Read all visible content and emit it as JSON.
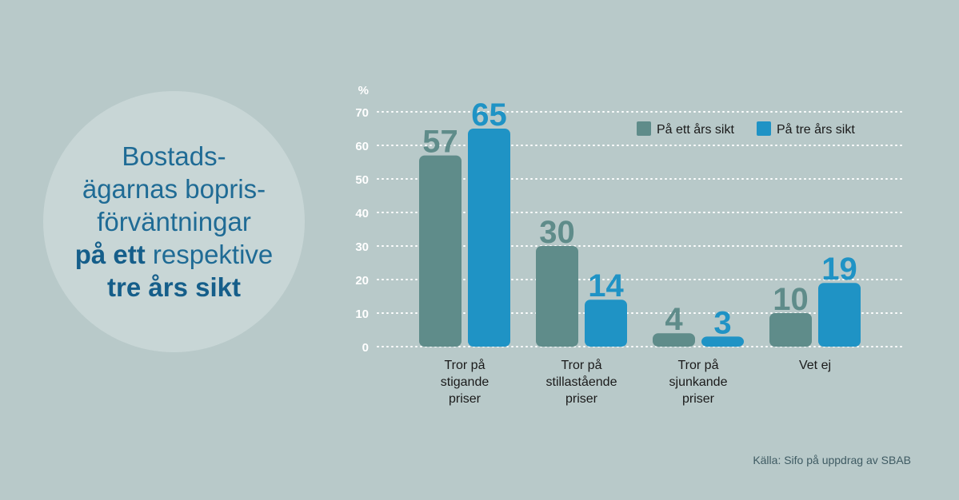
{
  "title": {
    "lines": [
      {
        "text": "Bostads-",
        "bold": false
      },
      {
        "text": "ägarnas bopris-",
        "bold": false
      },
      {
        "text": "förväntningar",
        "bold": false
      },
      {
        "parts": [
          {
            "text": "på ett",
            "bold": true
          },
          {
            "text": " respektive",
            "bold": false
          }
        ]
      },
      {
        "text": "tre års sikt",
        "bold": true
      }
    ]
  },
  "source": "Källa: Sifo på uppdrag av SBAB",
  "colors": {
    "series_1": "#5f8c8a",
    "series_2": "#1f93c5",
    "background": "#b8c9c9"
  },
  "chart_data": {
    "type": "bar",
    "ylabel": "%",
    "ylim": [
      0,
      70
    ],
    "yticks": [
      0,
      10,
      20,
      30,
      40,
      50,
      60,
      70
    ],
    "grid": true,
    "legend_position": "top-right",
    "categories": [
      [
        "Tror på",
        "stigande",
        "priser"
      ],
      [
        "Tror på",
        "stillastående",
        "priser"
      ],
      [
        "Tror på",
        "sjunkande",
        "priser"
      ],
      [
        "Vet ej"
      ]
    ],
    "series": [
      {
        "name": "På ett års sikt",
        "values": [
          57,
          30,
          4,
          10
        ]
      },
      {
        "name": "På tre års sikt",
        "values": [
          65,
          14,
          3,
          19
        ]
      }
    ]
  }
}
